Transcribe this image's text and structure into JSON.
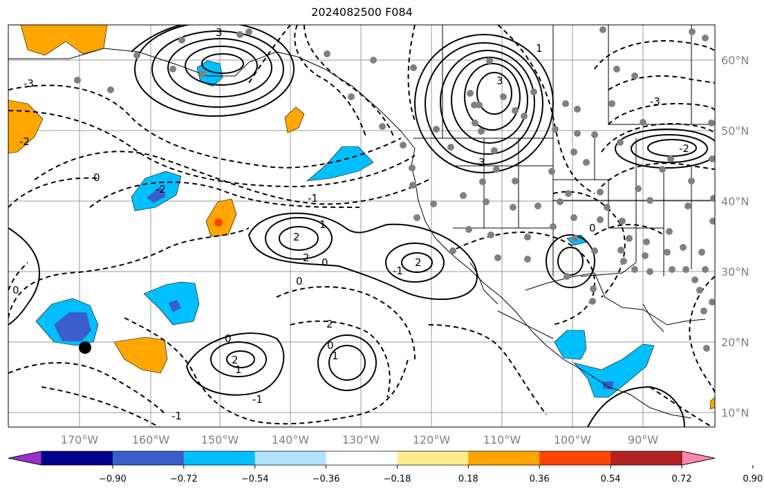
{
  "title": "2024082500 F084",
  "longitude_labels": [
    "170°W",
    "160°W",
    "150°W",
    "140°W",
    "130°W",
    "120°W",
    "110°W",
    "100°W",
    "90°W"
  ],
  "latitude_labels": [
    "60°N",
    "50°N",
    "40°N",
    "30°N",
    "20°N",
    "10°N"
  ],
  "colorbar": {
    "colors": [
      "#9932CC",
      "#00008B",
      "#3A5FCD",
      "#00BFFF",
      "#B2E2FF",
      "#FFFFFF",
      "#FFEC8B",
      "#FFA500",
      "#FF4500",
      "#B22222",
      "#FF88AA"
    ],
    "tick_labels": [
      "−0.90",
      "−0.72",
      "−0.54",
      "−0.36",
      "−0.18",
      "0.18",
      "0.36",
      "0.54",
      "0.72",
      "0.90"
    ]
  },
  "contour_labels": [
    "-3",
    "-3",
    "-2",
    "-2",
    "-2",
    "-1",
    "-1",
    "-1",
    "-1",
    "0",
    "0",
    "0",
    "0",
    "0",
    "0",
    "0",
    "1",
    "1",
    "1",
    "1",
    "2",
    "2",
    "2",
    "2",
    "2",
    "3",
    "3",
    "3"
  ]
}
